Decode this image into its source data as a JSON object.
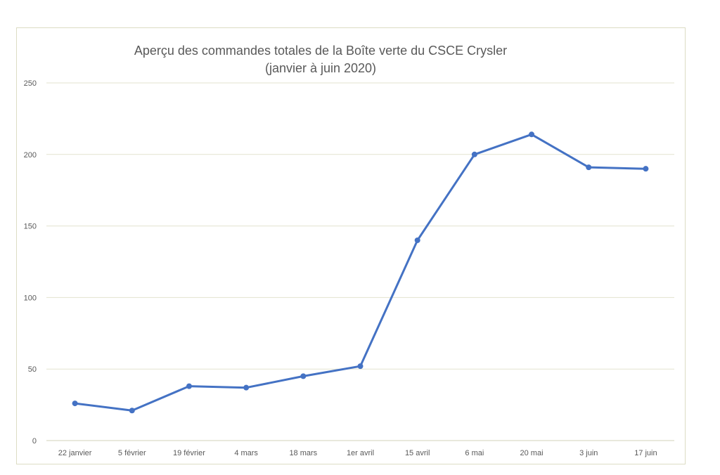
{
  "chart_data": {
    "type": "line",
    "title": "Aperçu des commandes totales de la Boîte verte du CSCE Crysler",
    "subtitle": "(janvier à juin 2020)",
    "xlabel": "",
    "ylabel": "",
    "categories": [
      "22 janvier",
      "5 février",
      "19 février",
      "4 mars",
      "18 mars",
      "1er avril",
      "15 avril",
      "6 mai",
      "20 mai",
      "3 juin",
      "17 juin"
    ],
    "series": [
      {
        "values": [
          26,
          21,
          38,
          37,
          45,
          52,
          140,
          200,
          214,
          191,
          190
        ]
      }
    ],
    "ylim": [
      0,
      250
    ],
    "yticks": [
      0,
      50,
      100,
      150,
      200,
      250
    ],
    "grid": true,
    "legend": "none",
    "colors": {
      "line": "#4472c4",
      "grid": "#e3e3cf",
      "axis": "#d0d0b8",
      "text": "#595959"
    }
  }
}
